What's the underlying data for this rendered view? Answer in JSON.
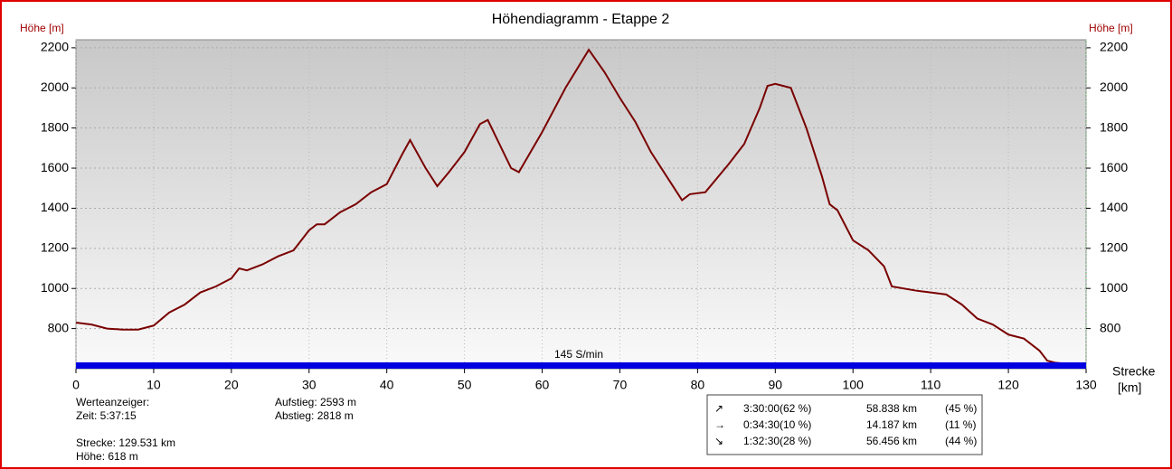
{
  "chart_data": {
    "type": "line",
    "title": "Höhendiagramm - Etappe 2",
    "y_label": "Höhe [m]",
    "y2_label": "Höhe [m]",
    "x_label": [
      "Strecke",
      "[km]"
    ],
    "annotation": "145 S/min",
    "x": [
      0,
      2,
      4,
      6,
      8,
      10,
      12,
      14,
      16,
      18,
      20,
      21,
      22,
      24,
      26,
      28,
      30,
      31,
      32,
      34,
      36,
      38,
      40,
      42,
      43,
      45,
      46.5,
      48,
      50,
      52,
      53,
      54,
      56,
      57,
      60,
      63,
      66,
      68,
      70,
      72,
      74,
      76,
      78,
      79,
      81,
      84,
      86,
      88,
      89,
      90,
      92,
      94,
      96,
      97,
      98,
      100,
      102,
      104,
      105,
      108,
      110,
      112,
      114,
      116,
      118,
      120,
      122,
      124,
      125,
      126,
      129.5
    ],
    "series": [
      {
        "name": "Höhe",
        "color": "#7a0000",
        "values": [
          830,
          820,
          800,
          795,
          795,
          815,
          880,
          920,
          980,
          1010,
          1050,
          1100,
          1090,
          1120,
          1160,
          1190,
          1290,
          1320,
          1320,
          1380,
          1420,
          1480,
          1520,
          1670,
          1740,
          1600,
          1510,
          1580,
          1680,
          1820,
          1840,
          1760,
          1600,
          1580,
          1780,
          2000,
          2190,
          2080,
          1950,
          1830,
          1680,
          1560,
          1440,
          1470,
          1480,
          1620,
          1720,
          1900,
          2010,
          2020,
          2000,
          1800,
          1560,
          1420,
          1390,
          1240,
          1190,
          1110,
          1010,
          990,
          980,
          970,
          920,
          850,
          820,
          770,
          750,
          690,
          640,
          630,
          618
        ]
      }
    ],
    "xlim": [
      0,
      130
    ],
    "xticks": [
      0,
      10,
      20,
      30,
      40,
      50,
      60,
      70,
      80,
      90,
      100,
      110,
      120,
      130
    ],
    "ylim": [
      600,
      2240
    ],
    "yticks": [
      800,
      1000,
      1200,
      1400,
      1600,
      1800,
      2000,
      2200
    ],
    "y2lim": [
      600,
      2240
    ],
    "y2ticks": [
      800,
      1000,
      1200,
      1400,
      1600,
      1800,
      2000,
      2200
    ],
    "grid": true
  },
  "info": {
    "left": [
      "Werteanzeiger:",
      "Zeit: 5:37:15",
      "Strecke: 129.531 km",
      "Höhe: 618 m"
    ],
    "middle": [
      "Aufstieg: 2593 m",
      "Abstieg: 2818 m"
    ]
  },
  "summary": {
    "rows": [
      [
        "↗",
        "3:30:00",
        "(62 %)",
        "58.838 km",
        "(45 %)"
      ],
      [
        "→",
        "0:34:30",
        "(10 %)",
        "14.187 km",
        "(11 %)"
      ],
      [
        "↘",
        "1:32:30",
        "(28 %)",
        "56.456 km",
        "(44 %)"
      ]
    ]
  }
}
